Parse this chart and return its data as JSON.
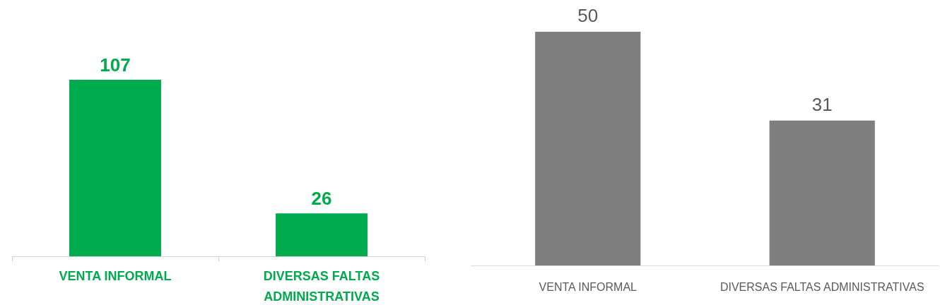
{
  "chart_data": [
    {
      "type": "bar",
      "categories": [
        "VENTA INFORMAL",
        "DIVERSAS FALTAS ADMINISTRATIVAS"
      ],
      "values": [
        107,
        26
      ],
      "color": "#00ab4e",
      "data_labels": true
    },
    {
      "type": "bar",
      "categories": [
        "VENTA INFORMAL",
        "DIVERSAS FALTAS ADMINISTRATIVAS"
      ],
      "values": [
        50,
        31
      ],
      "color": "#7f7f7f",
      "data_labels": true
    }
  ]
}
